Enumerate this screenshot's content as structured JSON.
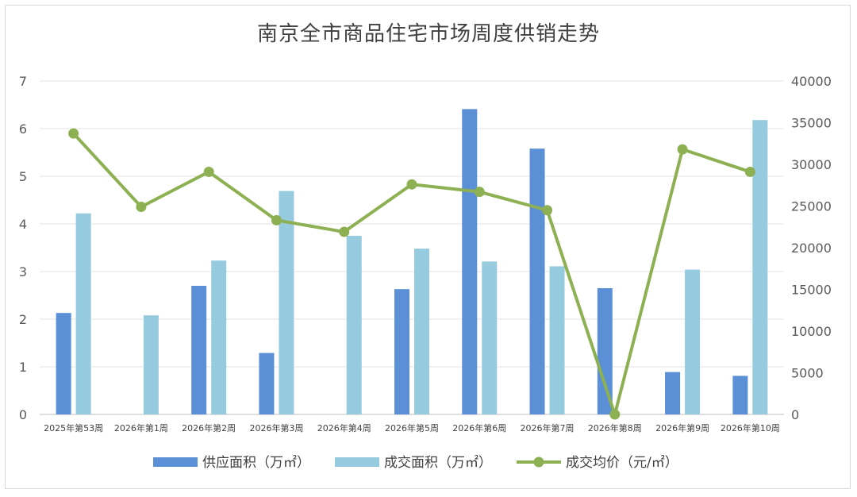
{
  "chart_data": {
    "type": "bar",
    "title": "南京全市商品住宅市场周度供销走势",
    "categories": [
      "2025年第53周",
      "2026年第1周",
      "2026年第2周",
      "2026年第3周",
      "2026年第4周",
      "2026年第5周",
      "2026年第6周",
      "2026年第7周",
      "2026年第8周",
      "2026年第9周",
      "2026年第10周"
    ],
    "left_axis": {
      "range": [
        0,
        7
      ],
      "ticks": [
        0,
        1,
        2,
        3,
        4,
        5,
        6,
        7
      ]
    },
    "right_axis": {
      "range": [
        0,
        40000
      ],
      "ticks": [
        0,
        5000,
        10000,
        15000,
        20000,
        25000,
        30000,
        35000,
        40000
      ]
    },
    "series": [
      {
        "name": "供应面积（万㎡）",
        "type": "bar",
        "axis": "left",
        "color": "#5b8fd6",
        "values": [
          2.13,
          0,
          2.7,
          1.29,
          0,
          2.63,
          6.41,
          5.58,
          2.65,
          0.89,
          0.81
        ]
      },
      {
        "name": "成交面积（万㎡）",
        "type": "bar",
        "axis": "left",
        "color": "#96cbdf",
        "values": [
          4.22,
          2.08,
          3.23,
          4.69,
          3.75,
          3.48,
          3.21,
          3.11,
          0,
          3.04,
          6.18
        ]
      },
      {
        "name": "成交均价（元/㎡）",
        "type": "line",
        "axis": "right",
        "color": "#8db052",
        "values": [
          33700,
          24900,
          29100,
          23300,
          21900,
          27600,
          26700,
          24500,
          0,
          31800,
          29100
        ]
      }
    ],
    "grid": true,
    "legend_position": "bottom"
  }
}
